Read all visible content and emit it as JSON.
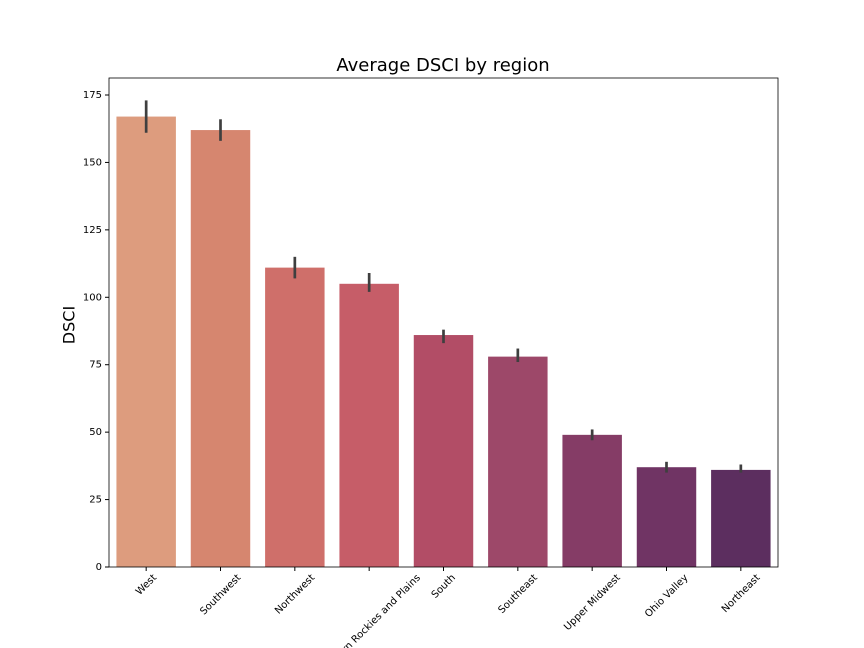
{
  "chart_data": {
    "type": "bar",
    "title": "Average DSCI by region",
    "y_label": "DSCI",
    "categories": [
      "West",
      "Southwest",
      "Northwest",
      "Northern Rockies and Plains",
      "South",
      "Southeast",
      "Upper Midwest",
      "Ohio Valley",
      "Northeast"
    ],
    "values": [
      167,
      162,
      111,
      105,
      86,
      78,
      49,
      37,
      36
    ],
    "ci_lower": [
      161,
      158,
      107,
      102,
      83,
      76,
      47,
      35,
      35
    ],
    "ci_upper": [
      173,
      166,
      115,
      109,
      88,
      81,
      51,
      39,
      38
    ],
    "colors": [
      "#dd9c7e",
      "#d6866f",
      "#cf6f6a",
      "#c65d68",
      "#b24d66",
      "#9d4869",
      "#853c66",
      "#703464",
      "#5c2e5f"
    ],
    "error_color": "#3f3f3f",
    "ylim": [
      0,
      175
    ],
    "yticks": [
      0,
      25,
      50,
      75,
      100,
      125,
      150,
      175
    ],
    "grid": false
  }
}
